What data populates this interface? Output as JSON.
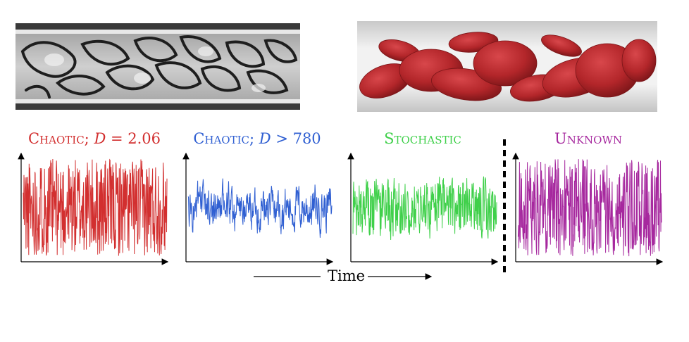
{
  "titles": {
    "chaotic_low": {
      "word": "Chaotic;",
      "sym": "D",
      "rel": "= 2.06",
      "color": "#d22f2f"
    },
    "chaotic_high": {
      "word": "Chaotic;",
      "sym": "D",
      "rel": "> 780",
      "color": "#2f5fd2"
    },
    "stochastic": {
      "word": "Stochastic",
      "color": "#3fd04a"
    },
    "unknown": {
      "word": "Unknown",
      "color": "#a6289e"
    }
  },
  "axis": {
    "xlabel": "Time"
  },
  "colors": {
    "chaotic_low": "#d22f2f",
    "chaotic_high": "#2f5fd2",
    "stochastic": "#3fd04a",
    "unknown": "#a6289e",
    "cells": "#b3262a"
  }
}
